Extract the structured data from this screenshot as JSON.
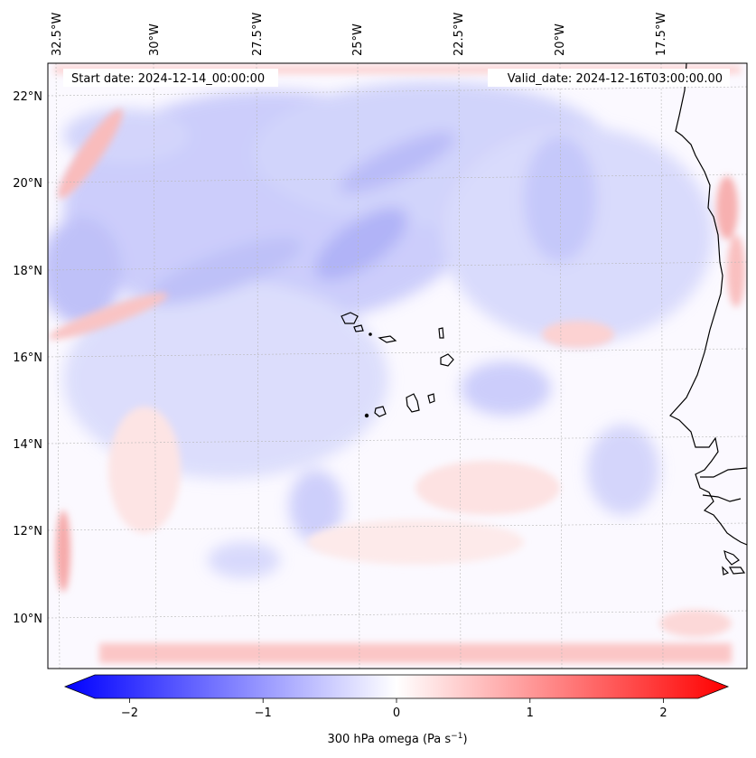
{
  "map": {
    "start_label": "Start date: 2024-12-14_00:00:00",
    "valid_label": "Valid_date: 2024-12-16T03:00:00.00",
    "lon_ticks": [
      "32.5°W",
      "30°W",
      "27.5°W",
      "25°W",
      "22.5°W",
      "20°W",
      "17.5°W"
    ],
    "lat_ticks": [
      "22°N",
      "20°N",
      "18°N",
      "16°N",
      "14°N",
      "12°N",
      "10°N"
    ],
    "extent": {
      "lon_min": -33.3,
      "lon_max": -16.0,
      "lat_min": 8.9,
      "lat_max": 22.7
    }
  },
  "colorbar": {
    "label": "300 hPa omega (Pa s",
    "label_sup": "−1",
    "label_close": ")",
    "ticks": [
      "−2",
      "−1",
      "0",
      "1",
      "2"
    ],
    "tick_values": [
      -2,
      -1,
      0,
      1,
      2
    ],
    "range": [
      -2.5,
      2.5
    ],
    "colors": {
      "min": "#0000ff",
      "mid": "#ffffff",
      "max": "#ff0000"
    }
  }
}
